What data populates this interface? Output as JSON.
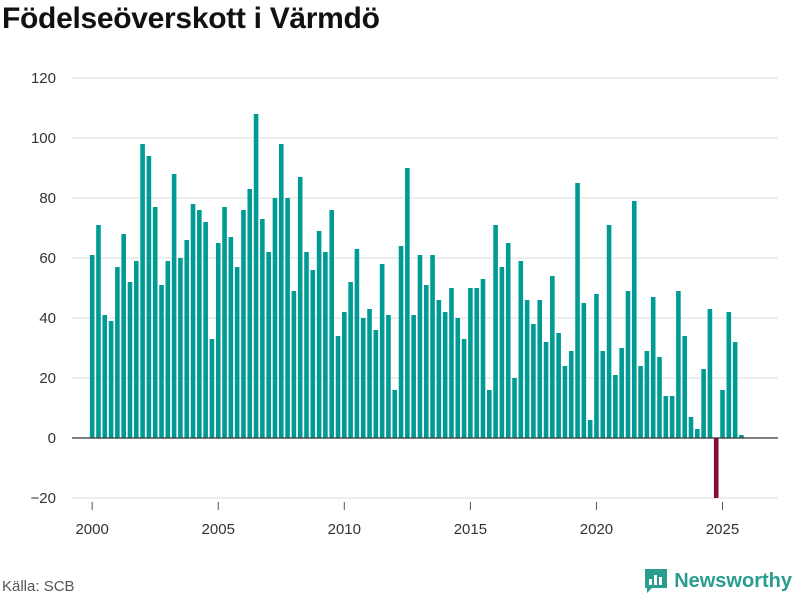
{
  "title": "Födelseöverskott i Värmdö",
  "source": "Källa: SCB",
  "brand": {
    "name": "Newsworthy",
    "color": "#2a9d8f",
    "icon": "newsworthy-logo-icon"
  },
  "colors": {
    "positive": "#009b94",
    "negative": "#8b0a3c",
    "grid": "#dddddd",
    "zero_line": "#333333"
  },
  "chart_data": {
    "type": "bar",
    "title": "Födelseöverskott i Värmdö",
    "xlabel": "",
    "ylabel": "",
    "x_ticks": [
      "2000",
      "2005",
      "2010",
      "2015",
      "2020",
      "2025"
    ],
    "y_ticks": [
      "120",
      "100",
      "80",
      "60",
      "40",
      "20",
      "0",
      "−20"
    ],
    "ylim": [
      -20,
      120
    ],
    "xlim": [
      1999.2,
      2027.2
    ],
    "grid": true,
    "start_quarter": "2000 Q1",
    "period": "quarter",
    "values": [
      61,
      71,
      41,
      39,
      57,
      68,
      52,
      59,
      98,
      94,
      77,
      51,
      59,
      88,
      60,
      66,
      78,
      76,
      72,
      33,
      65,
      77,
      67,
      57,
      76,
      83,
      108,
      73,
      62,
      80,
      98,
      80,
      49,
      87,
      62,
      56,
      69,
      62,
      76,
      34,
      42,
      52,
      63,
      40,
      43,
      36,
      58,
      41,
      16,
      64,
      90,
      41,
      61,
      51,
      61,
      46,
      42,
      50,
      40,
      33,
      50,
      50,
      53,
      16,
      71,
      57,
      65,
      20,
      59,
      46,
      38,
      46,
      32,
      54,
      35,
      24,
      29,
      85,
      45,
      6,
      48,
      29,
      71,
      21,
      30,
      49,
      79,
      24,
      29,
      47,
      27,
      14,
      14,
      49,
      34,
      7,
      3,
      23,
      43,
      -20,
      16,
      42,
      32,
      1
    ]
  }
}
